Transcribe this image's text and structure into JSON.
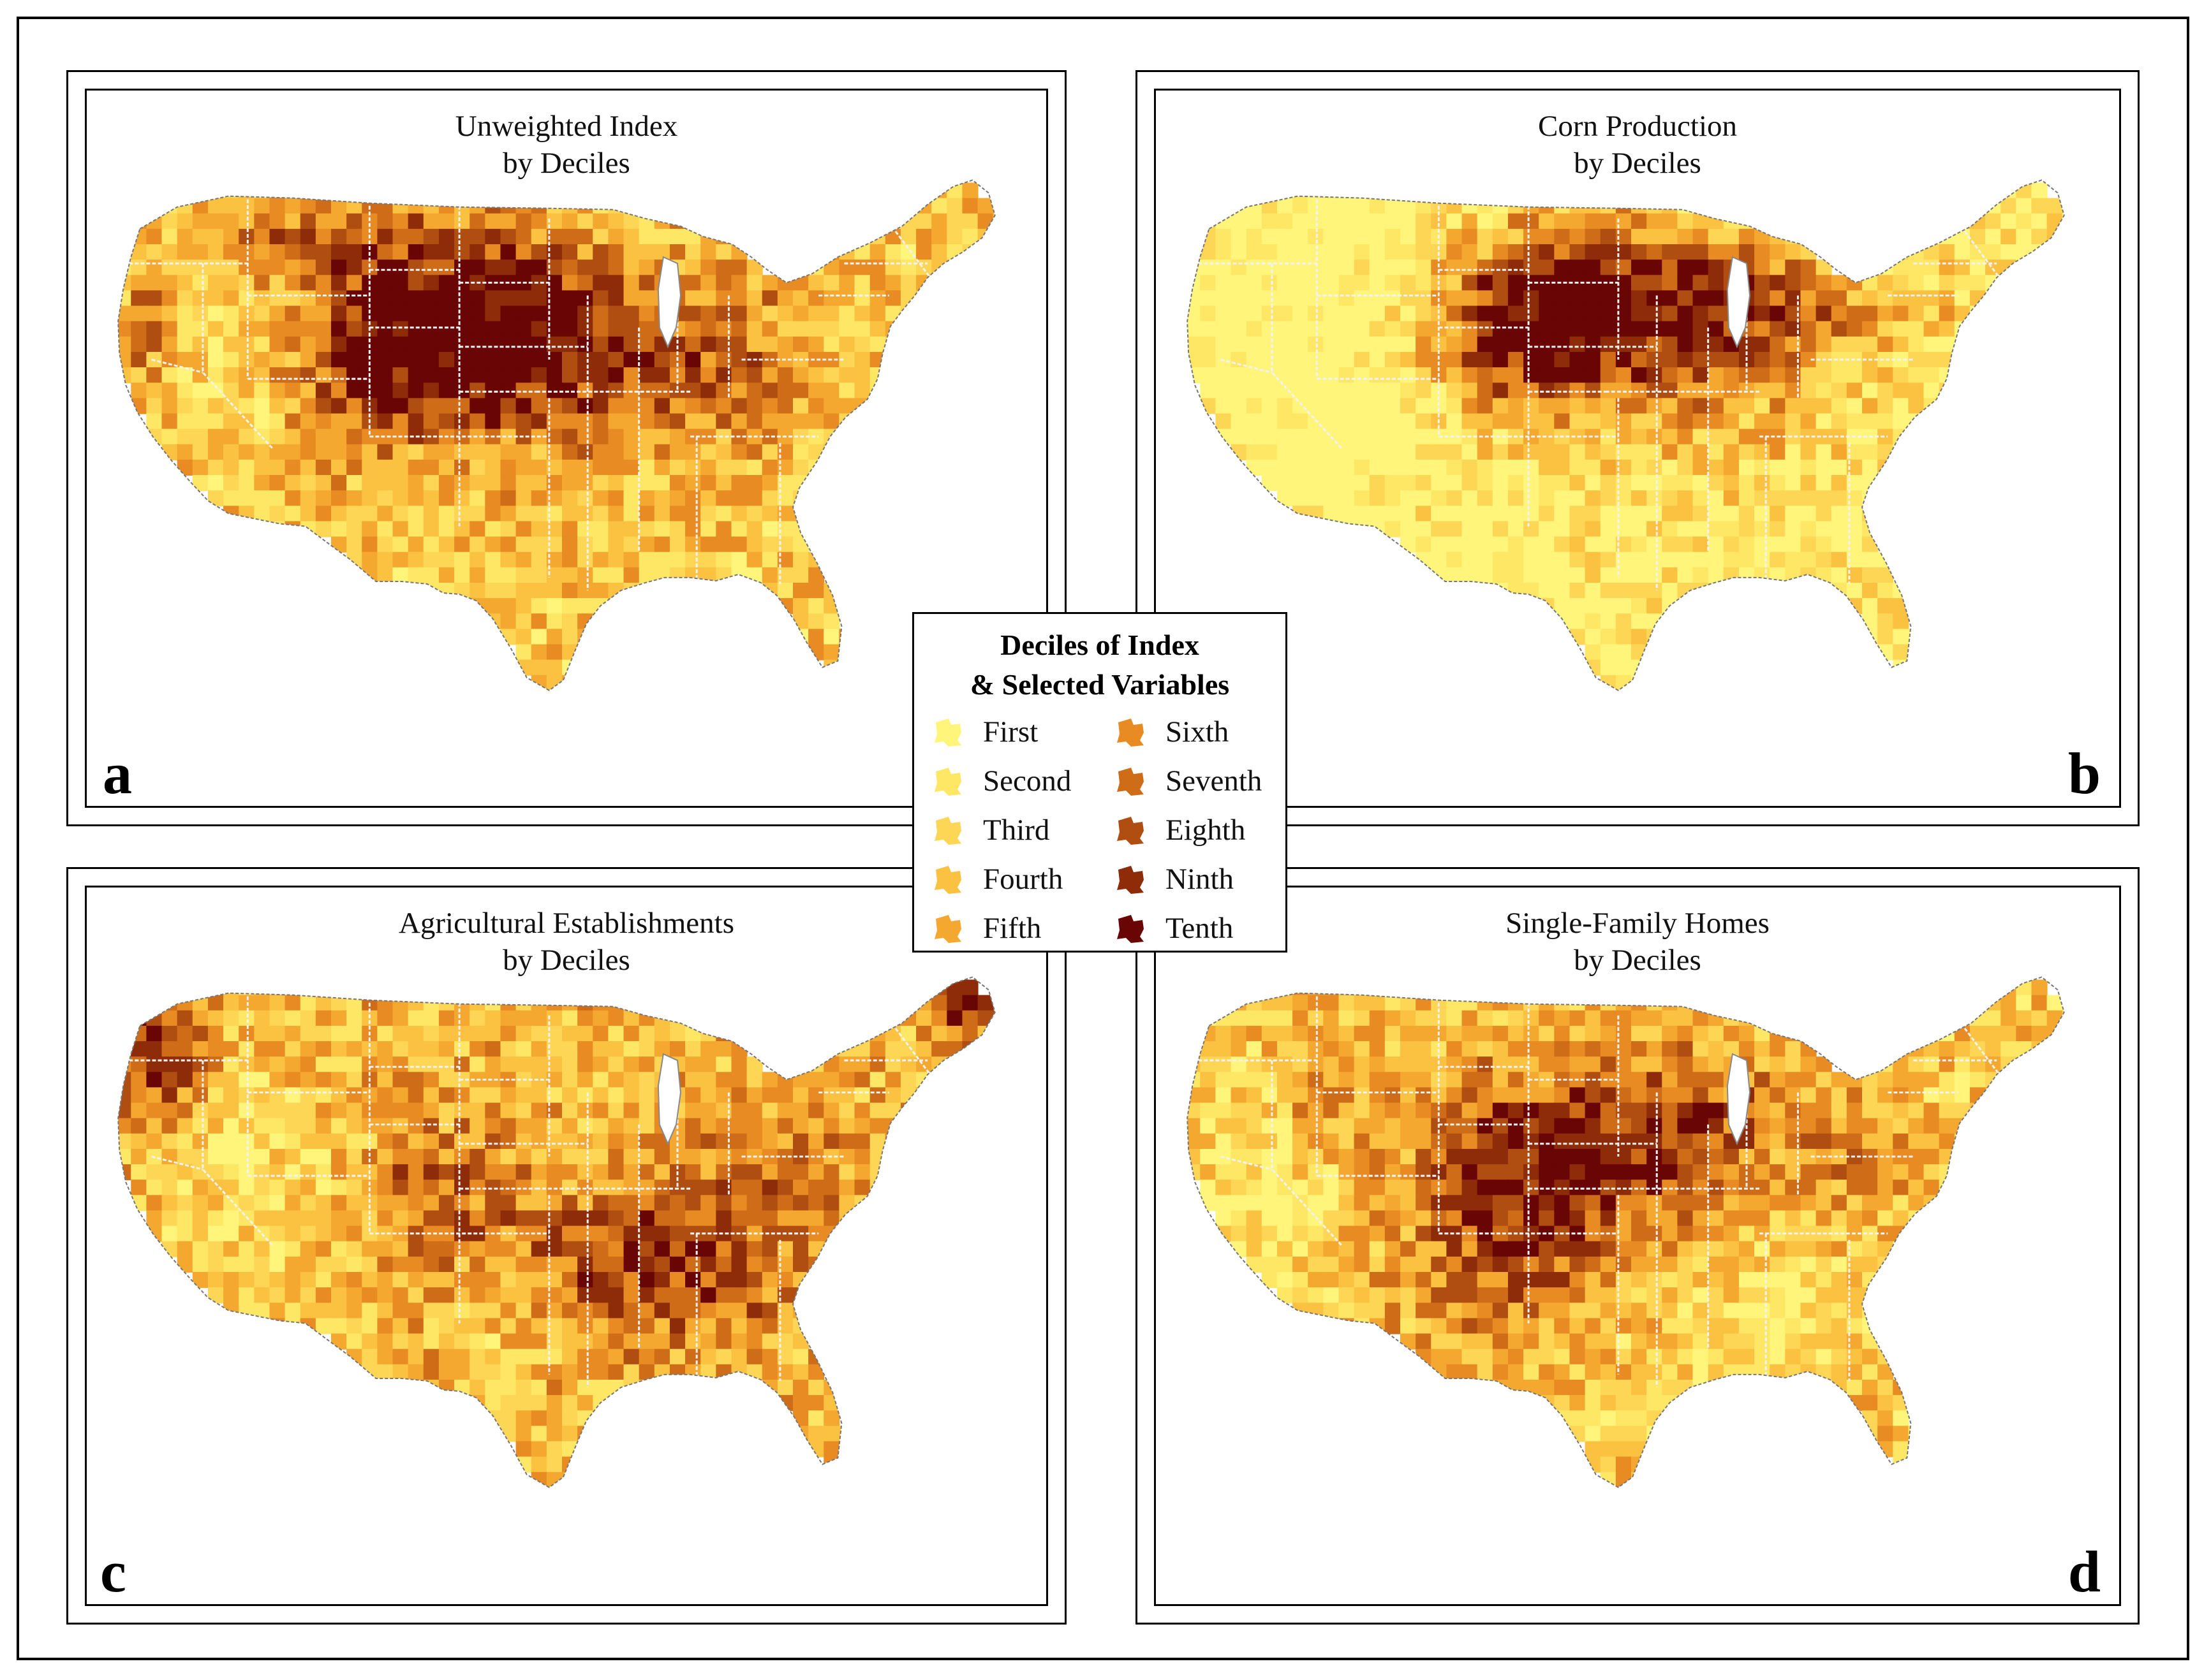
{
  "legend": {
    "title_line1": "Deciles of Index",
    "title_line2": "& Selected Variables",
    "items": [
      {
        "label": "First",
        "color": "#fff57a"
      },
      {
        "label": "Second",
        "color": "#ffe766"
      },
      {
        "label": "Third",
        "color": "#fed655"
      },
      {
        "label": "Fourth",
        "color": "#fbc140"
      },
      {
        "label": "Fifth",
        "color": "#f5a830"
      },
      {
        "label": "Sixth",
        "color": "#e88b22"
      },
      {
        "label": "Seventh",
        "color": "#cf6c18"
      },
      {
        "label": "Eighth",
        "color": "#b04e12"
      },
      {
        "label": "Ninth",
        "color": "#8e2c0a"
      },
      {
        "label": "Tenth",
        "color": "#6a0505"
      }
    ]
  },
  "panels": [
    {
      "id": "a",
      "letter": "a",
      "title_line1": "Unweighted Index",
      "title_line2": "by Deciles"
    },
    {
      "id": "b",
      "letter": "b",
      "title_line1": "Corn Production",
      "title_line2": "by Deciles"
    },
    {
      "id": "c",
      "letter": "c",
      "title_line1": "Agricultural Establishments",
      "title_line2": "by Deciles"
    },
    {
      "id": "d",
      "letter": "d",
      "title_line1": "Single-Family Homes",
      "title_line2": "by Deciles"
    }
  ]
}
